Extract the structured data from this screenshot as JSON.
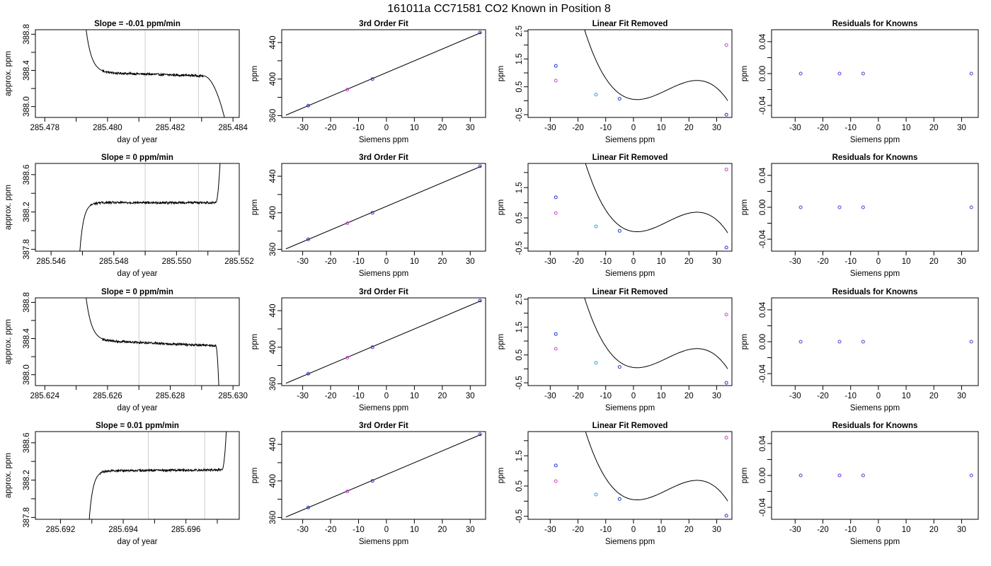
{
  "figure": {
    "title": "161011a      CC71581    CO2 Known in Position  8"
  },
  "chart_data": [
    {
      "type": "line",
      "row": 0,
      "title": "Slope =  -0.01  ppm/min",
      "xlabel": "day of year",
      "ylabel": "approx. ppm",
      "xlim": [
        285.4777,
        285.4842
      ],
      "ylim": [
        387.88,
        388.85
      ],
      "xticks": [
        285.478,
        285.48,
        285.482,
        285.484
      ],
      "xminor": [
        285.479,
        285.481,
        285.483
      ],
      "xdecimals": 3,
      "yticks": [
        388.0,
        388.4,
        388.8
      ],
      "yminor": [
        388.2,
        388.6
      ],
      "ydecimals": 1,
      "vlines": [
        285.4812,
        285.4829
      ],
      "vline_color": "#cccccc",
      "trace": {
        "t_start": 285.4793,
        "t_steady": 285.4802,
        "t_end": 285.48305,
        "t_fall": 285.48375,
        "start_level": 388.9,
        "level": 388.37,
        "end_level": 388.34,
        "fall_level": 387.85,
        "noise": 0.012
      }
    },
    {
      "type": "scatter",
      "row": 0,
      "title": "3rd Order Fit",
      "xlabel": "Siemens ppm",
      "ylabel": "ppm",
      "xlim": [
        -37.5,
        35.5
      ],
      "ylim": [
        358,
        454
      ],
      "xticks": [
        -30,
        -20,
        -10,
        0,
        10,
        20,
        30
      ],
      "yticks": [
        360,
        400,
        440
      ],
      "yminor": [
        380,
        420
      ],
      "line": {
        "x": [
          -36,
          34
        ],
        "y": [
          360.5,
          451
        ]
      },
      "points": [
        {
          "x": -28,
          "y": 371,
          "color": "#2233cc"
        },
        {
          "x": -14,
          "y": 388.5,
          "color": "#cc44cc"
        },
        {
          "x": -5,
          "y": 400,
          "color": "#2233cc"
        },
        {
          "x": 33.5,
          "y": 451,
          "color": "#2233cc"
        }
      ]
    },
    {
      "type": "scatter",
      "row": 0,
      "title": "Linear Fit Removed",
      "xlabel": "Siemens ppm",
      "ylabel": "ppm",
      "xlim": [
        -38,
        35.5
      ],
      "ylim": [
        -0.6,
        2.55
      ],
      "xticks": [
        -30,
        -20,
        -10,
        0,
        10,
        20,
        30
      ],
      "yticks": [
        -0.5,
        0.5,
        1.5,
        2.5
      ],
      "yminor": [
        0,
        1,
        2
      ],
      "curve": {
        "type": "cubic",
        "x_range": [
          -36.5,
          34
        ],
        "c3": -0.000136,
        "c2": 0.00494,
        "c1": -0.0122,
        "c0": 0.05
      },
      "points": [
        {
          "x": -28,
          "y": 1.25,
          "color": "#2233cc"
        },
        {
          "x": -28,
          "y": 0.72,
          "color": "#cc44cc"
        },
        {
          "x": -13.5,
          "y": 0.22,
          "color": "#22aadd"
        },
        {
          "x": -5,
          "y": 0.07,
          "color": "#2233cc"
        },
        {
          "x": 33.5,
          "y": 2.0,
          "color": "#cc44cc"
        },
        {
          "x": 33.5,
          "y": -0.5,
          "color": "#2233cc"
        }
      ]
    },
    {
      "type": "scatter",
      "row": 0,
      "title": "Residuals for Knowns",
      "xlabel": "Siemens ppm",
      "ylabel": "ppm",
      "xlim": [
        -38.5,
        36
      ],
      "ylim": [
        -0.055,
        0.055
      ],
      "xticks": [
        -30,
        -20,
        -10,
        0,
        10,
        20,
        30
      ],
      "yticks": [
        -0.04,
        0.0,
        0.04
      ],
      "yminor": [
        -0.02,
        0.02
      ],
      "ydecimals": 2,
      "points": [
        {
          "x": -28,
          "y": 0.0,
          "color": "#6633cc"
        },
        {
          "x": -14,
          "y": 0.0,
          "color": "#6633cc"
        },
        {
          "x": -5.5,
          "y": 0.0,
          "color": "#6633cc"
        },
        {
          "x": 33.5,
          "y": 0.0,
          "color": "#6633cc"
        }
      ]
    },
    {
      "type": "line",
      "row": 1,
      "title": "Slope =  0  ppm/min",
      "xlabel": "day of year",
      "ylabel": "approx. ppm",
      "xlim": [
        285.5455,
        285.552
      ],
      "ylim": [
        387.78,
        388.72
      ],
      "xticks": [
        285.546,
        285.548,
        285.55,
        285.552
      ],
      "xminor": [
        285.547,
        285.549,
        285.551
      ],
      "xdecimals": 3,
      "yticks": [
        387.8,
        388.2,
        388.6
      ],
      "yminor": [
        388.0,
        388.4
      ],
      "ydecimals": 1,
      "vlines": [
        285.549,
        285.5507
      ],
      "vline_color": "#cccccc",
      "trace": {
        "t_start": 285.5469,
        "t_steady": 285.5475,
        "t_end": 285.55125,
        "t_fall": 285.5514,
        "start_level": 387.7,
        "level": 388.3,
        "end_level": 388.3,
        "fall_level": 388.8,
        "noise": 0.012
      }
    },
    {
      "type": "scatter",
      "row": 1,
      "title": "3rd Order Fit",
      "xlabel": "Siemens ppm",
      "ylabel": "ppm",
      "xlim": [
        -37.5,
        35.5
      ],
      "ylim": [
        358,
        454
      ],
      "xticks": [
        -30,
        -20,
        -10,
        0,
        10,
        20,
        30
      ],
      "yticks": [
        360,
        400,
        440
      ],
      "yminor": [
        380,
        420
      ],
      "line": {
        "x": [
          -36,
          34
        ],
        "y": [
          360.5,
          451
        ]
      },
      "points": [
        {
          "x": -28,
          "y": 371,
          "color": "#2233cc"
        },
        {
          "x": -14,
          "y": 388.5,
          "color": "#cc44cc"
        },
        {
          "x": -5,
          "y": 400,
          "color": "#2233cc"
        },
        {
          "x": 33.5,
          "y": 451,
          "color": "#2233cc"
        }
      ]
    },
    {
      "type": "scatter",
      "row": 1,
      "title": "Linear Fit Removed",
      "xlabel": "Siemens ppm",
      "ylabel": "ppm",
      "xlim": [
        -38,
        35.5
      ],
      "ylim": [
        -0.6,
        2.3
      ],
      "xticks": [
        -30,
        -20,
        -10,
        0,
        10,
        20,
        30
      ],
      "yticks": [
        -0.5,
        0.5,
        1.5
      ],
      "yminor": [
        0,
        1,
        2
      ],
      "curve": {
        "type": "cubic",
        "x_range": [
          -36.5,
          34
        ],
        "c3": -0.000128,
        "c2": 0.00465,
        "c1": -0.0115,
        "c0": 0.05
      },
      "points": [
        {
          "x": -28,
          "y": 1.18,
          "color": "#2233cc"
        },
        {
          "x": -28,
          "y": 0.66,
          "color": "#cc44cc"
        },
        {
          "x": -13.5,
          "y": 0.22,
          "color": "#22aadd"
        },
        {
          "x": -5,
          "y": 0.07,
          "color": "#2233cc"
        },
        {
          "x": 33.5,
          "y": 2.1,
          "color": "#cc44cc"
        },
        {
          "x": 33.5,
          "y": -0.48,
          "color": "#2233cc"
        }
      ]
    },
    {
      "type": "scatter",
      "row": 1,
      "title": "Residuals for Knowns",
      "xlabel": "Siemens ppm",
      "ylabel": "ppm",
      "xlim": [
        -38.5,
        36
      ],
      "ylim": [
        -0.055,
        0.055
      ],
      "xticks": [
        -30,
        -20,
        -10,
        0,
        10,
        20,
        30
      ],
      "yticks": [
        -0.04,
        0.0,
        0.04
      ],
      "yminor": [
        -0.02,
        0.02
      ],
      "ydecimals": 2,
      "points": [
        {
          "x": -28,
          "y": 0.0,
          "color": "#6633cc"
        },
        {
          "x": -14,
          "y": 0.0,
          "color": "#6633cc"
        },
        {
          "x": -5.5,
          "y": 0.0,
          "color": "#6633cc"
        },
        {
          "x": 33.5,
          "y": 0.0,
          "color": "#6633cc"
        }
      ]
    },
    {
      "type": "line",
      "row": 2,
      "title": "Slope =  0  ppm/min",
      "xlabel": "day of year",
      "ylabel": "approx. ppm",
      "xlim": [
        285.6237,
        285.6302
      ],
      "ylim": [
        387.88,
        388.85
      ],
      "xticks": [
        285.624,
        285.626,
        285.628,
        285.63
      ],
      "xminor": [
        285.625,
        285.627,
        285.629
      ],
      "xdecimals": 3,
      "yticks": [
        388.0,
        388.4,
        388.8
      ],
      "yminor": [
        388.2,
        388.6
      ],
      "ydecimals": 1,
      "vlines": [
        285.627,
        285.6288
      ],
      "vline_color": "#cccccc",
      "trace": {
        "t_start": 285.6253,
        "t_steady": 285.6262,
        "t_end": 285.62945,
        "t_fall": 285.62955,
        "start_level": 388.9,
        "level": 388.37,
        "end_level": 388.32,
        "fall_level": 387.85,
        "noise": 0.012
      }
    },
    {
      "type": "scatter",
      "row": 2,
      "title": "3rd Order Fit",
      "xlabel": "Siemens ppm",
      "ylabel": "ppm",
      "xlim": [
        -37.5,
        35.5
      ],
      "ylim": [
        358,
        454
      ],
      "xticks": [
        -30,
        -20,
        -10,
        0,
        10,
        20,
        30
      ],
      "yticks": [
        360,
        400,
        440
      ],
      "yminor": [
        380,
        420
      ],
      "line": {
        "x": [
          -36,
          34
        ],
        "y": [
          360.5,
          451
        ]
      },
      "points": [
        {
          "x": -28,
          "y": 371,
          "color": "#2233cc"
        },
        {
          "x": -14,
          "y": 388.5,
          "color": "#cc44cc"
        },
        {
          "x": -5,
          "y": 400,
          "color": "#2233cc"
        },
        {
          "x": 33.5,
          "y": 451,
          "color": "#2233cc"
        }
      ]
    },
    {
      "type": "scatter",
      "row": 2,
      "title": "Linear Fit Removed",
      "xlabel": "Siemens ppm",
      "ylabel": "ppm",
      "xlim": [
        -38,
        35.5
      ],
      "ylim": [
        -0.6,
        2.55
      ],
      "xticks": [
        -30,
        -20,
        -10,
        0,
        10,
        20,
        30
      ],
      "yticks": [
        -0.5,
        0.5,
        1.5,
        2.5
      ],
      "yminor": [
        0,
        1,
        2
      ],
      "curve": {
        "type": "cubic",
        "x_range": [
          -36.5,
          34
        ],
        "c3": -0.000136,
        "c2": 0.00494,
        "c1": -0.0122,
        "c0": 0.05
      },
      "points": [
        {
          "x": -28,
          "y": 1.25,
          "color": "#2233cc"
        },
        {
          "x": -28,
          "y": 0.72,
          "color": "#cc44cc"
        },
        {
          "x": -13.5,
          "y": 0.22,
          "color": "#22aadd"
        },
        {
          "x": -5,
          "y": 0.07,
          "color": "#2233cc"
        },
        {
          "x": 33.5,
          "y": 1.95,
          "color": "#cc44cc"
        },
        {
          "x": 33.5,
          "y": -0.5,
          "color": "#2233cc"
        }
      ]
    },
    {
      "type": "scatter",
      "row": 2,
      "title": "Residuals for Knowns",
      "xlabel": "Siemens ppm",
      "ylabel": "ppm",
      "xlim": [
        -38.5,
        36
      ],
      "ylim": [
        -0.055,
        0.055
      ],
      "xticks": [
        -30,
        -20,
        -10,
        0,
        10,
        20,
        30
      ],
      "yticks": [
        -0.04,
        0.0,
        0.04
      ],
      "yminor": [
        -0.02,
        0.02
      ],
      "ydecimals": 2,
      "points": [
        {
          "x": -28,
          "y": 0.0,
          "color": "#6633cc"
        },
        {
          "x": -14,
          "y": 0.0,
          "color": "#6633cc"
        },
        {
          "x": -5.5,
          "y": 0.0,
          "color": "#6633cc"
        },
        {
          "x": 33.5,
          "y": 0.0,
          "color": "#6633cc"
        }
      ]
    },
    {
      "type": "line",
      "row": 3,
      "title": "Slope =  0.01  ppm/min",
      "xlabel": "day of year",
      "ylabel": "approx. ppm",
      "xlim": [
        285.6912,
        285.6977
      ],
      "ylim": [
        387.78,
        388.72
      ],
      "xticks": [
        285.692,
        285.694,
        285.696
      ],
      "xminor": [
        285.693,
        285.695,
        285.697
      ],
      "xdecimals": 3,
      "yticks": [
        387.8,
        388.2,
        388.6
      ],
      "yminor": [
        388.0,
        388.4
      ],
      "ydecimals": 1,
      "vlines": [
        285.6948,
        285.6966
      ],
      "vline_color": "#cccccc",
      "trace": {
        "t_start": 285.6929,
        "t_steady": 285.6935,
        "t_end": 285.69715,
        "t_fall": 285.6973,
        "start_level": 387.7,
        "level": 388.3,
        "end_level": 388.31,
        "fall_level": 388.8,
        "noise": 0.012
      }
    },
    {
      "type": "scatter",
      "row": 3,
      "title": "3rd Order Fit",
      "xlabel": "Siemens ppm",
      "ylabel": "ppm",
      "xlim": [
        -37.5,
        35.5
      ],
      "ylim": [
        358,
        454
      ],
      "xticks": [
        -30,
        -20,
        -10,
        0,
        10,
        20,
        30
      ],
      "yticks": [
        360,
        400,
        440
      ],
      "yminor": [
        380,
        420
      ],
      "line": {
        "x": [
          -36,
          34
        ],
        "y": [
          360.5,
          451
        ]
      },
      "points": [
        {
          "x": -28,
          "y": 371,
          "color": "#2233cc"
        },
        {
          "x": -14,
          "y": 388.5,
          "color": "#cc44cc"
        },
        {
          "x": -5,
          "y": 400,
          "color": "#2233cc"
        },
        {
          "x": 33.5,
          "y": 451,
          "color": "#2233cc"
        }
      ]
    },
    {
      "type": "scatter",
      "row": 3,
      "title": "Linear Fit Removed",
      "xlabel": "Siemens ppm",
      "ylabel": "ppm",
      "xlim": [
        -38,
        35.5
      ],
      "ylim": [
        -0.6,
        2.3
      ],
      "xticks": [
        -30,
        -20,
        -10,
        0,
        10,
        20,
        30
      ],
      "yticks": [
        -0.5,
        0.5,
        1.5
      ],
      "yminor": [
        0,
        1,
        2
      ],
      "curve": {
        "type": "cubic",
        "x_range": [
          -36.5,
          34
        ],
        "c3": -0.000128,
        "c2": 0.00465,
        "c1": -0.0115,
        "c0": 0.05
      },
      "points": [
        {
          "x": -28,
          "y": 1.18,
          "color": "#2233cc"
        },
        {
          "x": -28,
          "y": 0.66,
          "color": "#cc44cc"
        },
        {
          "x": -13.5,
          "y": 0.22,
          "color": "#22aadd"
        },
        {
          "x": -5,
          "y": 0.07,
          "color": "#2233cc"
        },
        {
          "x": 33.5,
          "y": 2.1,
          "color": "#cc44cc"
        },
        {
          "x": 33.5,
          "y": -0.48,
          "color": "#2233cc"
        }
      ]
    },
    {
      "type": "scatter",
      "row": 3,
      "title": "Residuals for Knowns",
      "xlabel": "Siemens ppm",
      "ylabel": "ppm",
      "xlim": [
        -38.5,
        36
      ],
      "ylim": [
        -0.055,
        0.055
      ],
      "xticks": [
        -30,
        -20,
        -10,
        0,
        10,
        20,
        30
      ],
      "yticks": [
        -0.04,
        0.0,
        0.04
      ],
      "yminor": [
        -0.02,
        0.02
      ],
      "ydecimals": 2,
      "points": [
        {
          "x": -28,
          "y": 0.0,
          "color": "#6633cc"
        },
        {
          "x": -14,
          "y": 0.0,
          "color": "#6633cc"
        },
        {
          "x": -5.5,
          "y": 0.0,
          "color": "#6633cc"
        },
        {
          "x": 33.5,
          "y": 0.0,
          "color": "#6633cc"
        }
      ]
    }
  ]
}
